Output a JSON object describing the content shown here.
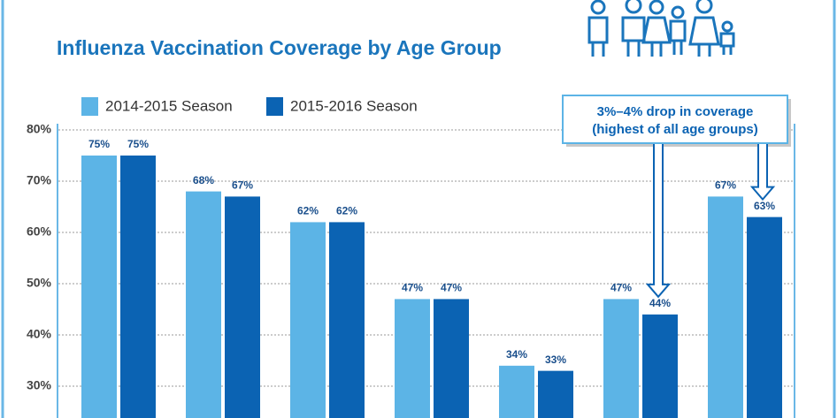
{
  "chart_data": {
    "type": "bar",
    "title": "Influenza Vaccination Coverage by Age Group",
    "categories": [
      null,
      null,
      null,
      null,
      null,
      null,
      null
    ],
    "series": [
      {
        "name": "2014-2015 Season",
        "color": "#5cb4e6",
        "values": [
          75,
          68,
          62,
          47,
          34,
          47,
          67
        ],
        "value_labels": [
          "75%",
          "68%",
          "62%",
          "47%",
          "34%",
          "47%",
          "67%"
        ]
      },
      {
        "name": "2015-2016 Season",
        "color": "#0b63b3",
        "values": [
          75,
          67,
          62,
          47,
          33,
          44,
          63
        ],
        "value_labels": [
          "75%",
          "67%",
          "62%",
          "47%",
          "33%",
          "44%",
          "63%"
        ]
      }
    ],
    "ylim": [
      23.8,
      80
    ],
    "yticks": [
      {
        "value": 30,
        "label": "30%"
      },
      {
        "value": 40,
        "label": "40%"
      },
      {
        "value": 50,
        "label": "50%"
      },
      {
        "value": 60,
        "label": "60%"
      },
      {
        "value": 70,
        "label": "70%"
      },
      {
        "value": 80,
        "label": "80%"
      }
    ],
    "grid": true,
    "annotations": [
      "3%–4% drop in coverage",
      "(highest of all age groups)"
    ]
  }
}
